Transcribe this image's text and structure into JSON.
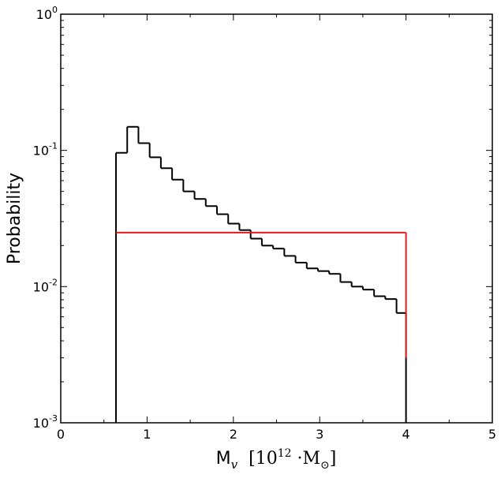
{
  "chart_data": {
    "type": "step-histogram",
    "xlabel": {
      "main": "M",
      "sub": "v",
      "unit_open": "[10",
      "unit_exp": "12",
      "unit_dot": " ·M",
      "unit_sun": "⊙",
      "unit_close": "]"
    },
    "ylabel": "Probability",
    "xlim": [
      0,
      5
    ],
    "ylim": [
      0.001,
      1
    ],
    "yscale": "log",
    "x_ticks": [
      {
        "value": 0,
        "label": "0"
      },
      {
        "value": 1,
        "label": "1"
      },
      {
        "value": 2,
        "label": "2"
      },
      {
        "value": 3,
        "label": "3"
      },
      {
        "value": 4,
        "label": "4"
      },
      {
        "value": 5,
        "label": "5"
      }
    ],
    "y_ticks": [
      {
        "value": 0.001,
        "base": "10",
        "exp": "-3"
      },
      {
        "value": 0.01,
        "base": "10",
        "exp": "-2"
      },
      {
        "value": 0.1,
        "base": "10",
        "exp": "-1"
      },
      {
        "value": 1,
        "base": "10",
        "exp": "0"
      }
    ],
    "series": [
      {
        "color": "#000000",
        "bin_edges": [
          0.64,
          0.77,
          0.9,
          1.03,
          1.16,
          1.29,
          1.42,
          1.55,
          1.68,
          1.81,
          1.94,
          2.07,
          2.2,
          2.33,
          2.46,
          2.59,
          2.72,
          2.85,
          2.98,
          3.11,
          3.24,
          3.37,
          3.5,
          3.63,
          3.76,
          3.89,
          4.0
        ],
        "values": [
          0.096,
          0.149,
          0.113,
          0.089,
          0.074,
          0.061,
          0.05,
          0.044,
          0.039,
          0.034,
          0.029,
          0.026,
          0.0225,
          0.02,
          0.019,
          0.0168,
          0.015,
          0.0136,
          0.013,
          0.0124,
          0.0108,
          0.01,
          0.0095,
          0.0085,
          0.0081,
          0.0064
        ]
      },
      {
        "color": "#e41a1c",
        "bin_edges": [
          0.64,
          4.0
        ],
        "values": [
          0.0249
        ],
        "right_drop_to": 0.003
      }
    ]
  }
}
